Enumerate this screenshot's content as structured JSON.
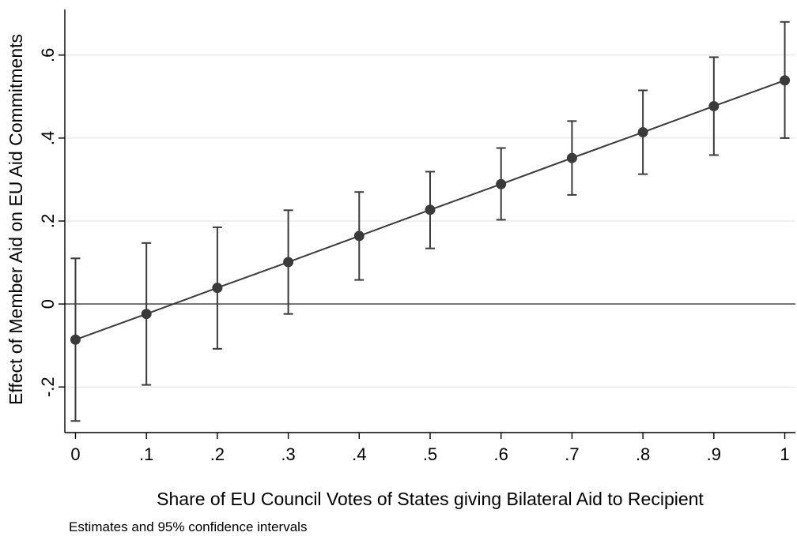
{
  "chart_data": {
    "type": "scatter",
    "title": "",
    "xlabel": "Share of EU Council Votes of States giving Bilateral Aid to Recipient",
    "ylabel": "Effect of Member Aid on EU Aid Commitments",
    "note": "Estimates and 95% confidence intervals",
    "x_ticks": [
      0,
      0.1,
      0.2,
      0.3,
      0.4,
      0.5,
      0.6,
      0.7,
      0.8,
      0.9,
      1
    ],
    "x_tick_labels": [
      "0",
      ".1",
      ".2",
      ".3",
      ".4",
      ".5",
      ".6",
      ".7",
      ".8",
      ".9",
      "1"
    ],
    "y_ticks": [
      -0.2,
      0,
      0.2,
      0.4,
      0.6
    ],
    "y_tick_labels": [
      "-.2",
      "0",
      ".2",
      ".4",
      ".6"
    ],
    "xlim": [
      -0.015,
      1.015
    ],
    "ylim": [
      -0.31,
      0.71
    ],
    "grid": true,
    "reference_line_y": 0,
    "series": [
      {
        "x": [
          0,
          0.1,
          0.2,
          0.3,
          0.4,
          0.5,
          0.6,
          0.7,
          0.8,
          0.9,
          1
        ],
        "y": [
          -0.086,
          -0.024,
          0.039,
          0.101,
          0.164,
          0.227,
          0.289,
          0.352,
          0.414,
          0.477,
          0.539
        ],
        "lower": [
          -0.282,
          -0.195,
          -0.108,
          -0.024,
          0.058,
          0.134,
          0.203,
          0.263,
          0.313,
          0.359,
          0.4
        ],
        "upper": [
          0.11,
          0.147,
          0.185,
          0.226,
          0.27,
          0.319,
          0.376,
          0.441,
          0.515,
          0.595,
          0.68
        ]
      }
    ]
  }
}
